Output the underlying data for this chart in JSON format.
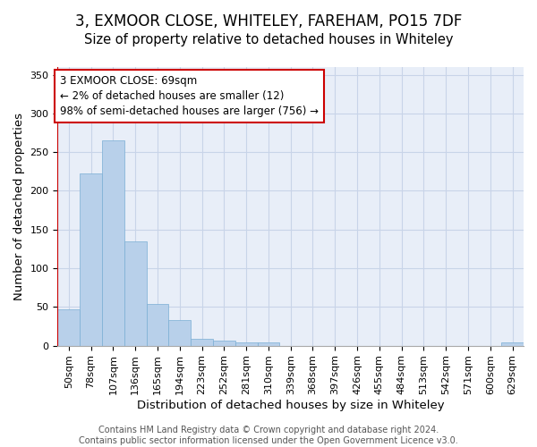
{
  "title": "3, EXMOOR CLOSE, WHITELEY, FAREHAM, PO15 7DF",
  "subtitle": "Size of property relative to detached houses in Whiteley",
  "xlabel": "Distribution of detached houses by size in Whiteley",
  "ylabel": "Number of detached properties",
  "footer_line1": "Contains HM Land Registry data © Crown copyright and database right 2024.",
  "footer_line2": "Contains public sector information licensed under the Open Government Licence v3.0.",
  "bin_labels": [
    "50sqm",
    "78sqm",
    "107sqm",
    "136sqm",
    "165sqm",
    "194sqm",
    "223sqm",
    "252sqm",
    "281sqm",
    "310sqm",
    "339sqm",
    "368sqm",
    "397sqm",
    "426sqm",
    "455sqm",
    "484sqm",
    "513sqm",
    "542sqm",
    "571sqm",
    "600sqm",
    "629sqm"
  ],
  "bar_values": [
    47,
    222,
    265,
    135,
    54,
    33,
    9,
    7,
    4,
    4,
    0,
    0,
    0,
    0,
    0,
    0,
    0,
    0,
    0,
    0,
    4
  ],
  "bar_color": "#b8d0ea",
  "bar_edge_color": "#7aaed4",
  "grid_color": "#c8d4e8",
  "background_color": "#e8eef8",
  "annotation_line1": "3 EXMOOR CLOSE: 69sqm",
  "annotation_line2": "← 2% of detached houses are smaller (12)",
  "annotation_line3": "98% of semi-detached houses are larger (756) →",
  "vline_x": -0.5,
  "vline_color": "#cc0000",
  "annotation_box_edge": "#cc0000",
  "ylim": [
    0,
    360
  ],
  "yticks": [
    0,
    50,
    100,
    150,
    200,
    250,
    300,
    350
  ],
  "title_fontsize": 12,
  "subtitle_fontsize": 10.5,
  "axis_label_fontsize": 9.5,
  "tick_fontsize": 8,
  "annotation_fontsize": 8.5,
  "footer_fontsize": 7
}
